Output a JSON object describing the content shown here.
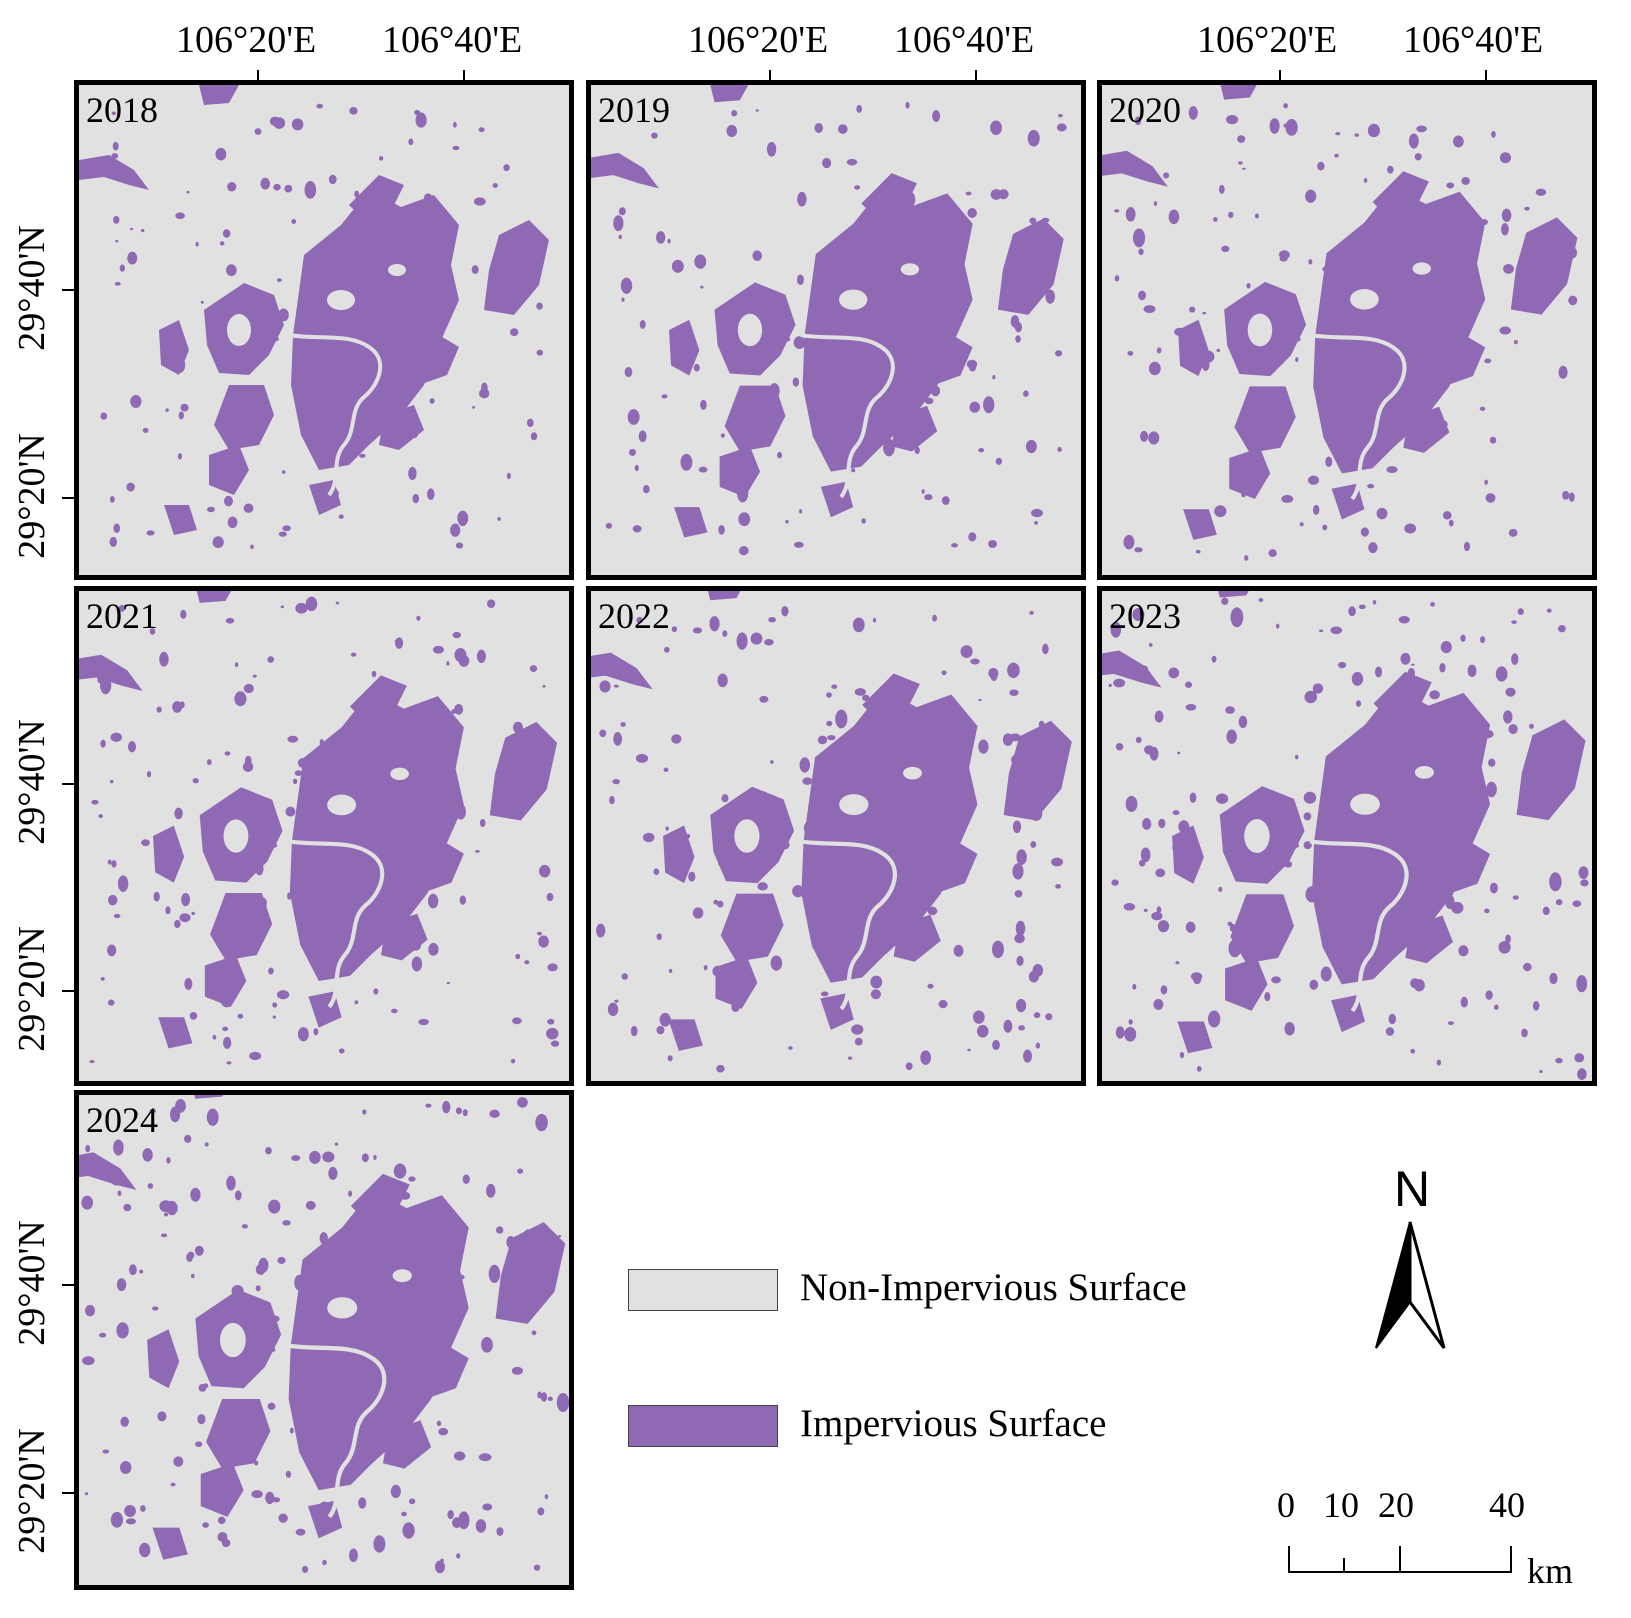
{
  "colors": {
    "impervious": "#9069b4",
    "non_impervious": "#e1e1e1",
    "frame": "#000000"
  },
  "axes": {
    "longitude_labels": [
      "106°20'E",
      "106°40'E"
    ],
    "latitude_labels": [
      "29°40'N",
      "29°20'N"
    ]
  },
  "panels": [
    {
      "year": "2018"
    },
    {
      "year": "2019"
    },
    {
      "year": "2020"
    },
    {
      "year": "2021"
    },
    {
      "year": "2022"
    },
    {
      "year": "2023"
    },
    {
      "year": "2024"
    }
  ],
  "legend": {
    "items": [
      {
        "label": "Non-Impervious Surface",
        "color": "#e1e1e1"
      },
      {
        "label": "Impervious Surface",
        "color": "#9069b4"
      }
    ]
  },
  "north_arrow": {
    "label": "N"
  },
  "scale_bar": {
    "ticks": [
      "0",
      "10",
      "20",
      "40"
    ],
    "unit": "km"
  }
}
